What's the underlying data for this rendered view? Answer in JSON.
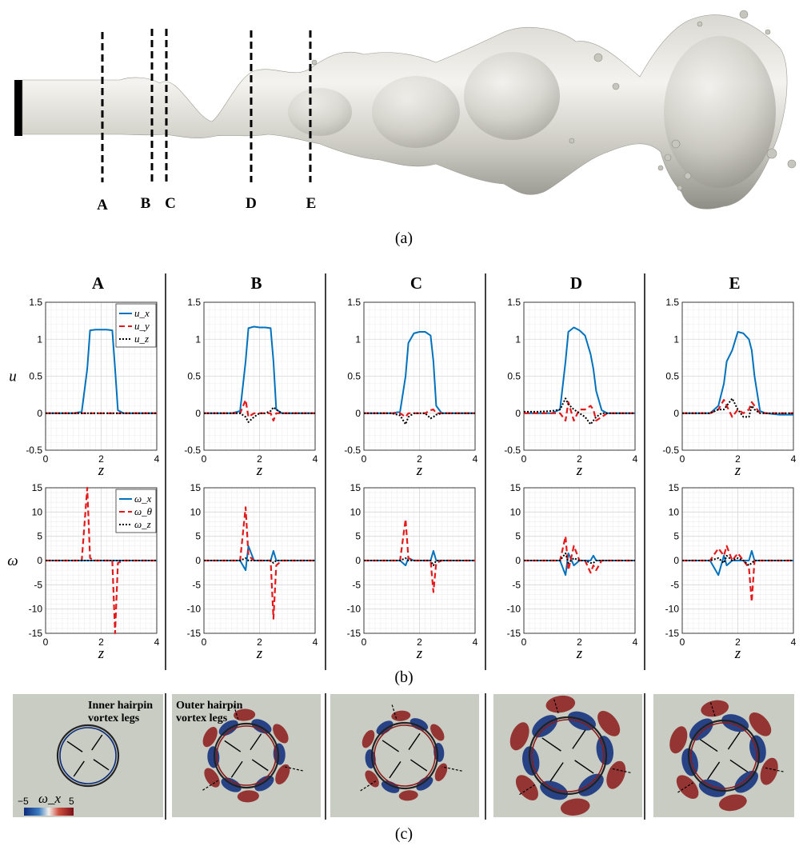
{
  "labels": {
    "a": "(a)",
    "b": "(b)",
    "c": "(c)"
  },
  "panel_a": {
    "cut_labels": [
      "A",
      "B",
      "C",
      "D",
      "E"
    ]
  },
  "panel_c": {
    "annotations": [
      "Inner hairpin",
      "vortex legs",
      "Outer hairpin",
      "vortex legs"
    ],
    "colorbar": {
      "min": "−5",
      "max": "5",
      "label": "ω_x"
    }
  },
  "colors": {
    "ux": "#0072bd",
    "uy": "#e31a1c",
    "uz": "#000000",
    "red": "#8b1a1a",
    "blue": "#0a2a7a",
    "bg": "#c9ccc3"
  },
  "chart_data": {
    "type": "line",
    "columns": [
      "A",
      "B",
      "C",
      "D",
      "E"
    ],
    "x": [
      0,
      0.5,
      1,
      1.3,
      1.5,
      1.6,
      1.8,
      2,
      2.2,
      2.4,
      2.5,
      2.6,
      2.8,
      3,
      3.5,
      4
    ],
    "xlim": [
      0,
      4
    ],
    "xticks": [
      "0",
      "2",
      "4"
    ],
    "velocity": {
      "ylabel": "u",
      "xlabel": "z",
      "ylim": [
        -0.5,
        1.5
      ],
      "yticks": [
        "-0.5",
        "0",
        "0.5",
        "1",
        "1.5"
      ],
      "legend": [
        "u_x",
        "u_y",
        "u_z"
      ],
      "series": {
        "A": {
          "ux": [
            0,
            0,
            0,
            0.02,
            0.6,
            1.12,
            1.13,
            1.13,
            1.13,
            1.12,
            0.6,
            0.04,
            0,
            0,
            0,
            0
          ],
          "uy": [
            0,
            0,
            0,
            0,
            0,
            0,
            0,
            0,
            0,
            0,
            0,
            0,
            0,
            0,
            0,
            0
          ],
          "uz": [
            0,
            0,
            0,
            0,
            0,
            0,
            0,
            0,
            0,
            0,
            0,
            0,
            0,
            0,
            0,
            0
          ]
        },
        "B": {
          "ux": [
            0,
            0,
            0,
            0.03,
            0.7,
            1.15,
            1.17,
            1.16,
            1.16,
            1.15,
            0.7,
            0.05,
            0,
            0,
            0,
            0
          ],
          "uy": [
            0,
            0,
            0,
            0,
            0.18,
            -0.05,
            0,
            0,
            0,
            0,
            -0.1,
            0,
            0,
            0,
            0,
            0
          ],
          "uz": [
            0,
            0,
            0,
            0,
            -0.05,
            -0.12,
            -0.05,
            0,
            0,
            0.03,
            0.08,
            0.05,
            0,
            0,
            0,
            0
          ]
        },
        "C": {
          "ux": [
            0,
            0,
            0,
            0.02,
            0.5,
            0.95,
            1.08,
            1.1,
            1.1,
            1.05,
            0.7,
            0.1,
            0,
            0,
            0,
            0
          ],
          "uy": [
            0,
            0,
            0,
            0,
            -0.05,
            0,
            0,
            0,
            0,
            0.04,
            0.05,
            0,
            0,
            0,
            0,
            0
          ],
          "uz": [
            0,
            0,
            0,
            -0.03,
            -0.15,
            -0.05,
            0,
            0,
            0,
            -0.07,
            -0.05,
            -0.02,
            0,
            0,
            0,
            0
          ]
        },
        "D": {
          "ux": [
            0,
            0,
            0,
            0.05,
            0.7,
            1.1,
            1.16,
            1.12,
            1.05,
            0.8,
            0.6,
            0.3,
            0.04,
            0,
            0,
            0
          ],
          "uy": [
            0,
            0,
            0,
            0,
            -0.1,
            0.15,
            -0.1,
            0.05,
            0.05,
            0.1,
            0.05,
            -0.1,
            -0.05,
            0,
            0,
            0
          ],
          "uz": [
            0.02,
            0.02,
            0.03,
            0.05,
            0.2,
            0.12,
            0.05,
            0,
            -0.05,
            -0.15,
            -0.1,
            -0.05,
            0,
            0,
            0,
            0
          ]
        },
        "E": {
          "ux": [
            0,
            0,
            0,
            0.1,
            0.4,
            0.7,
            0.85,
            1.1,
            1.08,
            1.0,
            0.85,
            0.5,
            0.03,
            0,
            -0.02,
            -0.02
          ],
          "uy": [
            0,
            0,
            0,
            0.05,
            0.18,
            0.1,
            -0.05,
            0.05,
            0,
            0.05,
            0.15,
            0.1,
            0,
            0,
            0,
            0
          ],
          "uz": [
            0,
            0,
            0,
            0.05,
            0.05,
            0.1,
            0.2,
            0.05,
            -0.05,
            -0.05,
            0.1,
            0.05,
            0,
            0,
            0,
            0
          ]
        }
      }
    },
    "vorticity": {
      "ylabel": "ω",
      "xlabel": "z",
      "ylim": [
        -15,
        15
      ],
      "yticks": [
        "-15",
        "-10",
        "-5",
        "0",
        "5",
        "10",
        "15"
      ],
      "legend": [
        "ω_x",
        "ω_θ",
        "ω_z"
      ],
      "series": {
        "A": {
          "wx": [
            0,
            0,
            0,
            0,
            0,
            0,
            0,
            0,
            0,
            0,
            0,
            0,
            0,
            0,
            0,
            0
          ],
          "wt": [
            0,
            0,
            0,
            0,
            15,
            0.5,
            0,
            0,
            0,
            0,
            -15,
            -0.5,
            0,
            0,
            0,
            0
          ],
          "wz": [
            0,
            0,
            0,
            0,
            0,
            0,
            0,
            0,
            0,
            0,
            0,
            0,
            0,
            0,
            0,
            0
          ]
        },
        "B": {
          "wx": [
            0,
            0,
            0,
            0,
            -2,
            3,
            0,
            0,
            0,
            0,
            2,
            0,
            0,
            0,
            0,
            0
          ],
          "wt": [
            0,
            0,
            0,
            0,
            11,
            1,
            0,
            0,
            0,
            0,
            -12,
            -1,
            0,
            0,
            0,
            0
          ],
          "wz": [
            0,
            0,
            0,
            0,
            0.5,
            0,
            0,
            0,
            0,
            0,
            -0.5,
            0,
            0,
            0,
            0,
            0
          ]
        },
        "C": {
          "wx": [
            0,
            0,
            0,
            0,
            -1,
            0.5,
            0,
            0,
            0,
            0,
            2,
            0,
            0,
            0,
            0,
            0
          ],
          "wt": [
            0,
            0,
            0,
            0,
            8.5,
            0.5,
            0,
            0,
            0,
            0,
            -6.5,
            -0.5,
            0,
            0,
            0,
            0
          ],
          "wz": [
            0,
            0,
            0,
            0,
            0.5,
            0,
            0,
            0,
            0,
            0,
            -1,
            0,
            0,
            0,
            0,
            0
          ]
        },
        "D": {
          "wx": [
            0,
            0,
            0,
            0,
            -3,
            1.5,
            -1,
            0,
            0,
            0,
            1,
            0,
            0,
            0,
            0,
            0
          ],
          "wt": [
            0,
            0,
            0,
            0,
            5,
            -2,
            3,
            0,
            0,
            -2.5,
            -1,
            -2,
            0,
            0,
            0,
            0
          ],
          "wz": [
            0,
            0,
            0,
            0,
            1.5,
            -0.5,
            0.5,
            0,
            0,
            -0.5,
            -0.5,
            0,
            0,
            0,
            0,
            0
          ]
        },
        "E": {
          "wx": [
            0,
            0,
            0,
            -3,
            1,
            -1,
            0,
            0,
            0,
            0,
            2,
            0,
            0,
            0,
            0,
            0
          ],
          "wt": [
            0,
            0,
            0,
            2.5,
            1,
            3,
            0,
            1.5,
            0,
            -1.5,
            -8.5,
            0,
            0,
            0,
            0,
            0
          ],
          "wz": [
            0,
            0,
            0,
            0.5,
            -0.5,
            1,
            0,
            0.5,
            0,
            -1,
            -0.5,
            0,
            0,
            0,
            0,
            0
          ]
        }
      }
    }
  }
}
